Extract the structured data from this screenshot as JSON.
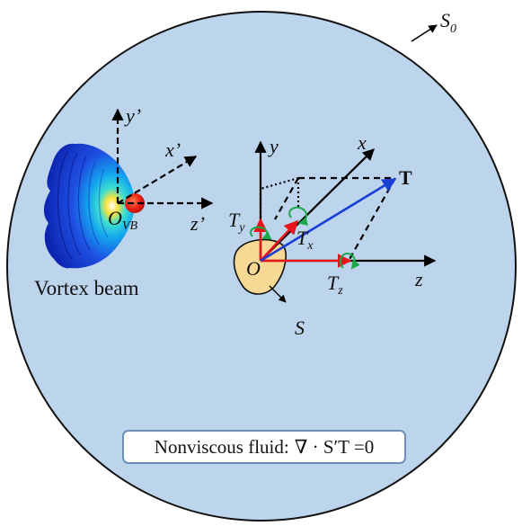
{
  "diagram": {
    "outer_surface_label": "S",
    "outer_surface_subscript": "0",
    "beam_caption": "Vortex beam",
    "beam_frame": {
      "y_label": "y",
      "x_label": "x",
      "z_label": "z",
      "prime": "’",
      "origin_label": "O",
      "origin_subscript": "VB"
    },
    "particle_frame": {
      "y_label": "y",
      "x_label": "x",
      "z_label": "z",
      "origin_label": "O",
      "surface_label": "S"
    },
    "torque": {
      "total_label": "T",
      "component_symbol": "T",
      "sub_x": "x",
      "sub_y": "y",
      "sub_z": "z"
    },
    "equation": {
      "prefix": "Nonviscous fluid:",
      "formula": "∇ · S′T =0"
    },
    "colors": {
      "fluid_fill": "#bcd5ec",
      "component_arrows": "#e8141b",
      "total_torque_arrow": "#1a3fd6",
      "rotation_markers": "#1aa84a",
      "particle_fill": "#f7d894",
      "box_border": "#6c8fb3"
    }
  }
}
